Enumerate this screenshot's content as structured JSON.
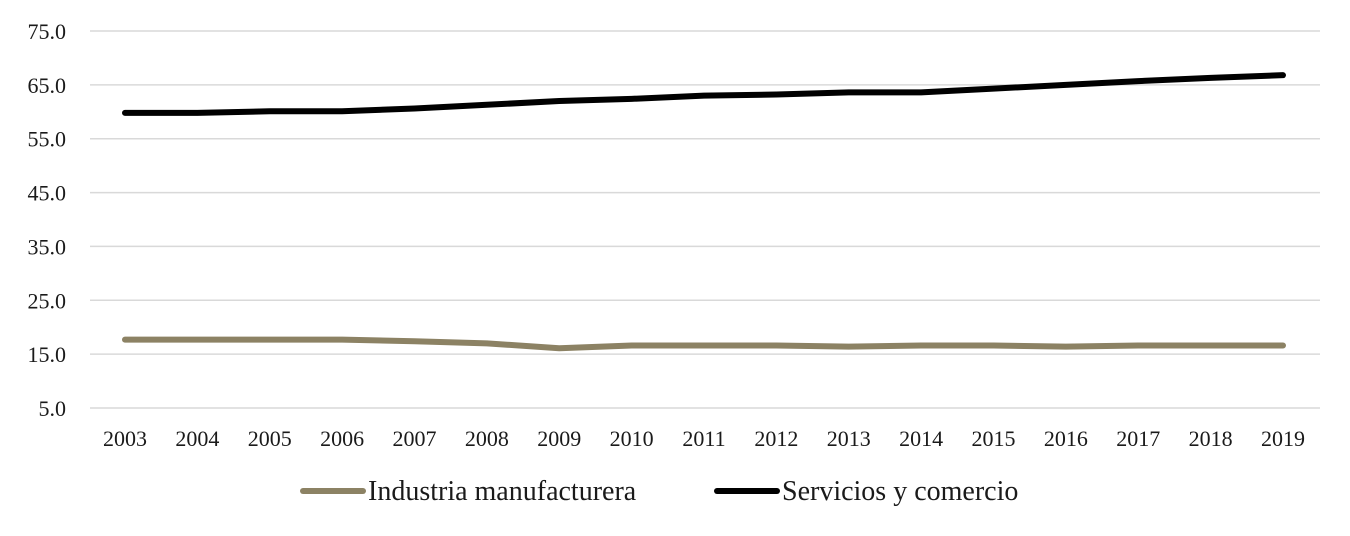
{
  "chart_data": {
    "type": "line",
    "title": "",
    "xlabel": "",
    "ylabel": "",
    "x": [
      "2003",
      "2004",
      "2005",
      "2006",
      "2007",
      "2008",
      "2009",
      "2010",
      "2011",
      "2012",
      "2013",
      "2014",
      "2015",
      "2016",
      "2017",
      "2018",
      "2019"
    ],
    "y_ticks": [
      "75.0",
      "65.0",
      "55.0",
      "45.0",
      "35.0",
      "25.0",
      "15.0",
      "5.0"
    ],
    "ylim": [
      5,
      75
    ],
    "grid": true,
    "legend_position": "bottom",
    "series": [
      {
        "name": "Industria manufacturera",
        "color": "#8c8264",
        "values": [
          17.7,
          17.7,
          17.7,
          17.7,
          17.4,
          17.0,
          16.1,
          16.6,
          16.6,
          16.6,
          16.4,
          16.6,
          16.6,
          16.4,
          16.6,
          16.6,
          16.6
        ]
      },
      {
        "name": "Servicios y comercio",
        "color": "#000000",
        "values": [
          59.8,
          59.8,
          60.1,
          60.1,
          60.6,
          61.3,
          62.0,
          62.4,
          63.0,
          63.2,
          63.6,
          63.6,
          64.3,
          65.0,
          65.7,
          66.3,
          66.8
        ]
      }
    ]
  }
}
